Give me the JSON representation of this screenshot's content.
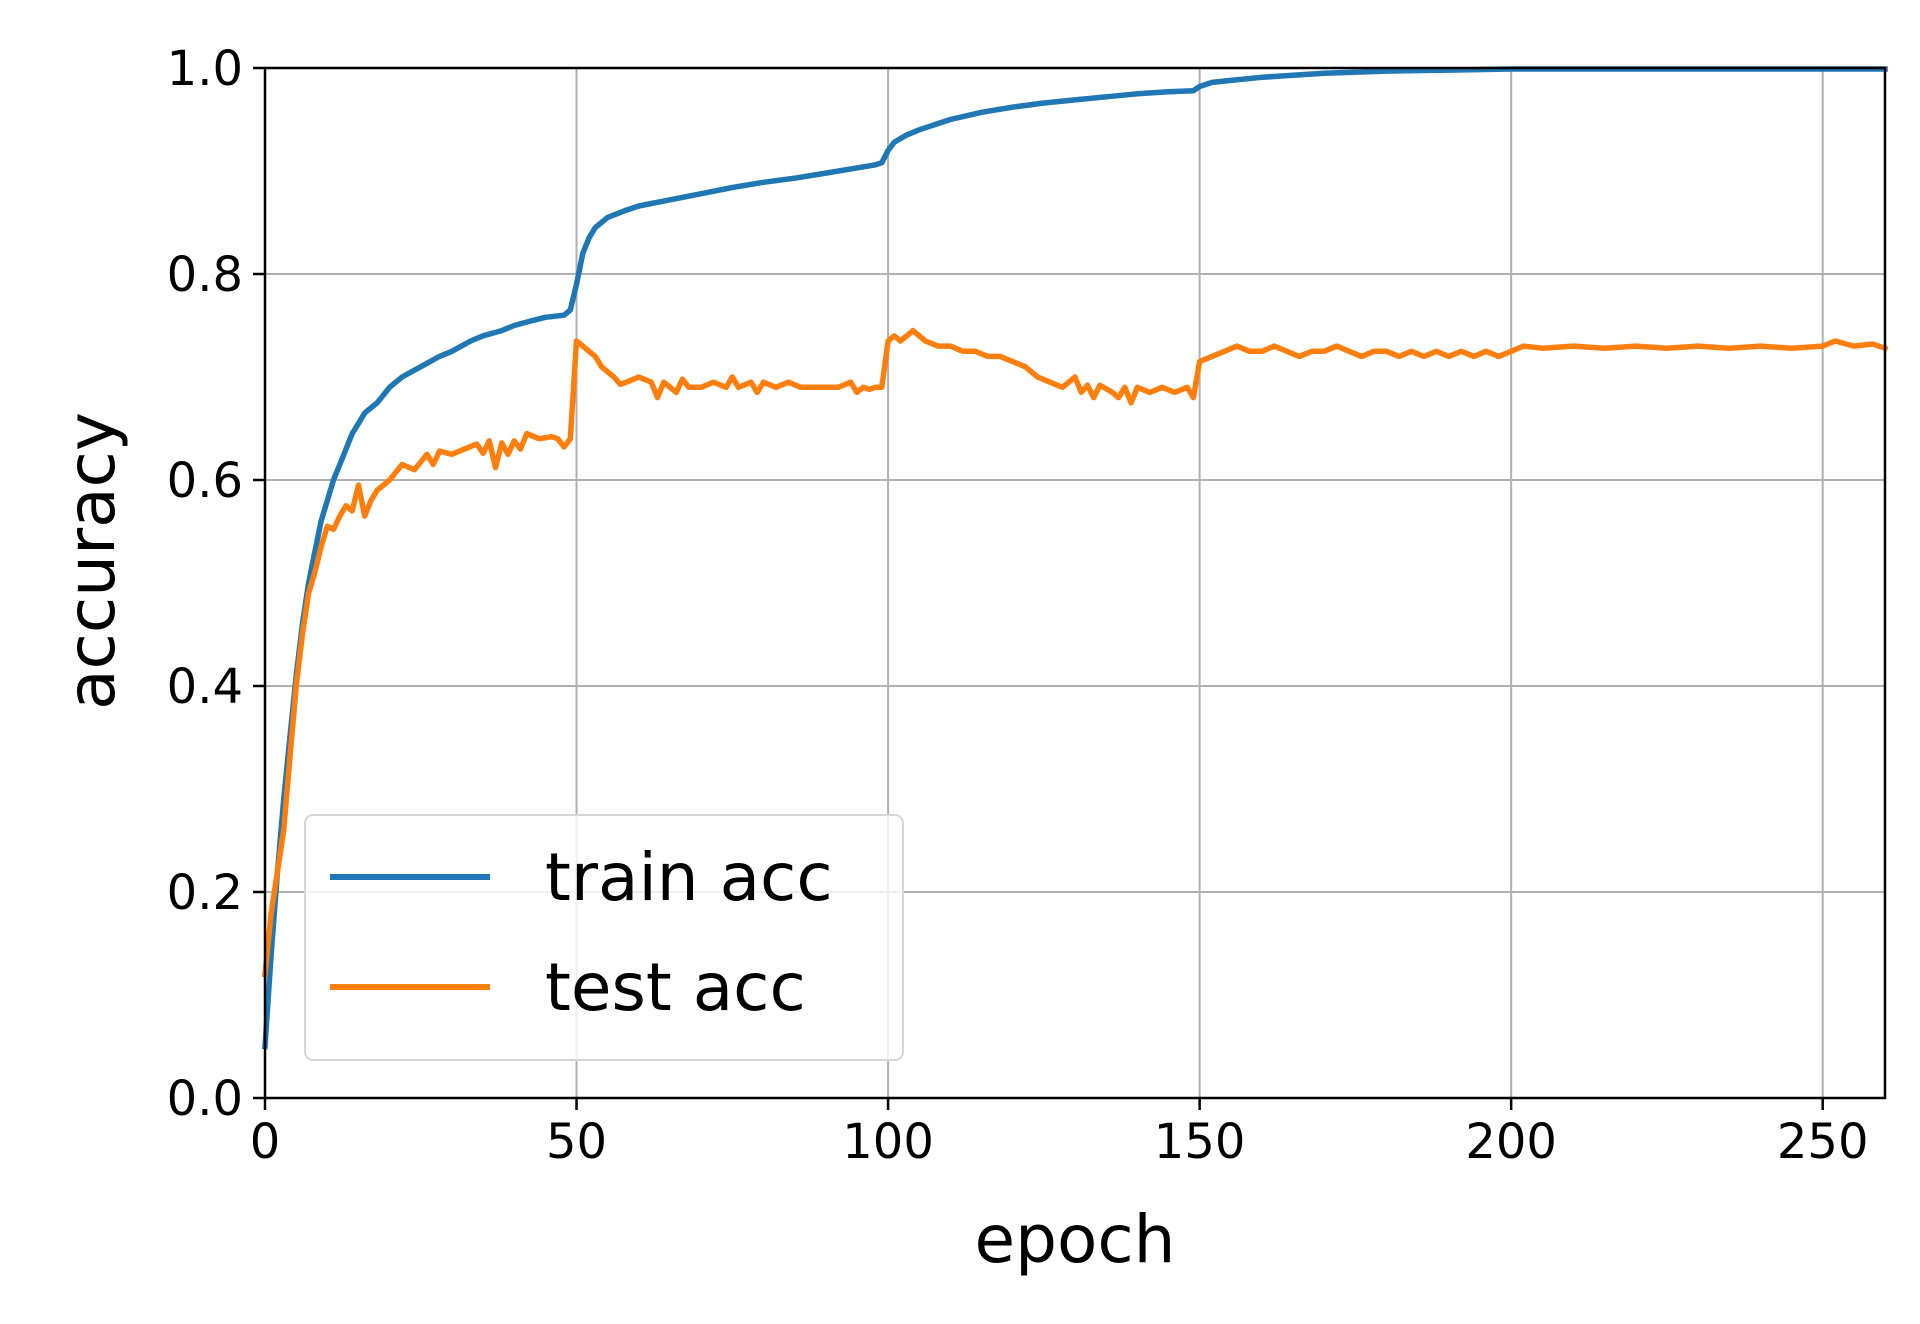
{
  "chart_data": {
    "type": "line",
    "title": "",
    "xlabel": "epoch",
    "ylabel": "accuracy",
    "xlim": [
      0,
      260
    ],
    "ylim": [
      0,
      1.0
    ],
    "xticks": [
      0,
      50,
      100,
      150,
      200,
      250
    ],
    "xtick_labels": [
      "0",
      "50",
      "100",
      "150",
      "200",
      "250"
    ],
    "yticks": [
      0,
      0.2,
      0.4,
      0.6,
      0.8,
      1.0
    ],
    "ytick_labels": [
      "0.0",
      "0.2",
      "0.4",
      "0.6",
      "0.8",
      "1.0"
    ],
    "grid": true,
    "legend_position": "lower-left",
    "series": [
      {
        "name": "train acc",
        "color": "#1f77b4",
        "points": [
          [
            0,
            0.05
          ],
          [
            1,
            0.14
          ],
          [
            2,
            0.22
          ],
          [
            3,
            0.29
          ],
          [
            4,
            0.35
          ],
          [
            5,
            0.41
          ],
          [
            6,
            0.46
          ],
          [
            7,
            0.5
          ],
          [
            8,
            0.53
          ],
          [
            9,
            0.56
          ],
          [
            10,
            0.58
          ],
          [
            11,
            0.6
          ],
          [
            12,
            0.615
          ],
          [
            13,
            0.63
          ],
          [
            14,
            0.645
          ],
          [
            15,
            0.655
          ],
          [
            16,
            0.665
          ],
          [
            18,
            0.675
          ],
          [
            20,
            0.69
          ],
          [
            22,
            0.7
          ],
          [
            25,
            0.71
          ],
          [
            28,
            0.72
          ],
          [
            30,
            0.725
          ],
          [
            33,
            0.735
          ],
          [
            35,
            0.74
          ],
          [
            38,
            0.745
          ],
          [
            40,
            0.75
          ],
          [
            43,
            0.755
          ],
          [
            45,
            0.758
          ],
          [
            48,
            0.76
          ],
          [
            49,
            0.765
          ],
          [
            50,
            0.79
          ],
          [
            51,
            0.82
          ],
          [
            52,
            0.835
          ],
          [
            53,
            0.845
          ],
          [
            55,
            0.855
          ],
          [
            58,
            0.862
          ],
          [
            60,
            0.866
          ],
          [
            65,
            0.872
          ],
          [
            70,
            0.878
          ],
          [
            75,
            0.884
          ],
          [
            80,
            0.889
          ],
          [
            85,
            0.893
          ],
          [
            90,
            0.898
          ],
          [
            95,
            0.903
          ],
          [
            98,
            0.906
          ],
          [
            99,
            0.908
          ],
          [
            100,
            0.92
          ],
          [
            101,
            0.928
          ],
          [
            103,
            0.935
          ],
          [
            105,
            0.94
          ],
          [
            108,
            0.946
          ],
          [
            110,
            0.95
          ],
          [
            115,
            0.957
          ],
          [
            120,
            0.962
          ],
          [
            125,
            0.966
          ],
          [
            130,
            0.969
          ],
          [
            135,
            0.972
          ],
          [
            140,
            0.975
          ],
          [
            145,
            0.977
          ],
          [
            149,
            0.978
          ],
          [
            150,
            0.982
          ],
          [
            152,
            0.986
          ],
          [
            155,
            0.988
          ],
          [
            160,
            0.991
          ],
          [
            165,
            0.993
          ],
          [
            170,
            0.995
          ],
          [
            180,
            0.997
          ],
          [
            190,
            0.998
          ],
          [
            200,
            0.999
          ],
          [
            220,
            0.999
          ],
          [
            240,
            0.999
          ],
          [
            260,
            0.999
          ]
        ]
      },
      {
        "name": "test acc",
        "color": "#ff7f0e",
        "points": [
          [
            0,
            0.12
          ],
          [
            1,
            0.18
          ],
          [
            2,
            0.22
          ],
          [
            3,
            0.26
          ],
          [
            4,
            0.33
          ],
          [
            5,
            0.4
          ],
          [
            6,
            0.45
          ],
          [
            7,
            0.49
          ],
          [
            8,
            0.51
          ],
          [
            9,
            0.535
          ],
          [
            10,
            0.555
          ],
          [
            11,
            0.552
          ],
          [
            12,
            0.565
          ],
          [
            13,
            0.575
          ],
          [
            14,
            0.57
          ],
          [
            15,
            0.595
          ],
          [
            16,
            0.565
          ],
          [
            17,
            0.58
          ],
          [
            18,
            0.59
          ],
          [
            20,
            0.6
          ],
          [
            22,
            0.615
          ],
          [
            24,
            0.61
          ],
          [
            26,
            0.625
          ],
          [
            27,
            0.615
          ],
          [
            28,
            0.628
          ],
          [
            30,
            0.625
          ],
          [
            32,
            0.63
          ],
          [
            34,
            0.635
          ],
          [
            35,
            0.626
          ],
          [
            36,
            0.638
          ],
          [
            37,
            0.612
          ],
          [
            38,
            0.636
          ],
          [
            39,
            0.625
          ],
          [
            40,
            0.638
          ],
          [
            41,
            0.63
          ],
          [
            42,
            0.645
          ],
          [
            44,
            0.64
          ],
          [
            46,
            0.642
          ],
          [
            47,
            0.64
          ],
          [
            48,
            0.632
          ],
          [
            49,
            0.64
          ],
          [
            50,
            0.735
          ],
          [
            51,
            0.73
          ],
          [
            52,
            0.725
          ],
          [
            53,
            0.72
          ],
          [
            54,
            0.71
          ],
          [
            55,
            0.705
          ],
          [
            56,
            0.7
          ],
          [
            57,
            0.693
          ],
          [
            58,
            0.695
          ],
          [
            60,
            0.7
          ],
          [
            62,
            0.695
          ],
          [
            63,
            0.68
          ],
          [
            64,
            0.695
          ],
          [
            65,
            0.69
          ],
          [
            66,
            0.685
          ],
          [
            67,
            0.698
          ],
          [
            68,
            0.69
          ],
          [
            70,
            0.69
          ],
          [
            72,
            0.695
          ],
          [
            74,
            0.69
          ],
          [
            75,
            0.7
          ],
          [
            76,
            0.69
          ],
          [
            78,
            0.695
          ],
          [
            79,
            0.685
          ],
          [
            80,
            0.695
          ],
          [
            82,
            0.69
          ],
          [
            84,
            0.695
          ],
          [
            86,
            0.69
          ],
          [
            88,
            0.69
          ],
          [
            90,
            0.69
          ],
          [
            92,
            0.69
          ],
          [
            94,
            0.695
          ],
          [
            95,
            0.685
          ],
          [
            96,
            0.69
          ],
          [
            97,
            0.688
          ],
          [
            98,
            0.69
          ],
          [
            99,
            0.69
          ],
          [
            100,
            0.735
          ],
          [
            101,
            0.74
          ],
          [
            102,
            0.735
          ],
          [
            104,
            0.745
          ],
          [
            106,
            0.735
          ],
          [
            108,
            0.73
          ],
          [
            110,
            0.73
          ],
          [
            112,
            0.725
          ],
          [
            114,
            0.725
          ],
          [
            116,
            0.72
          ],
          [
            118,
            0.72
          ],
          [
            120,
            0.715
          ],
          [
            122,
            0.71
          ],
          [
            124,
            0.7
          ],
          [
            126,
            0.695
          ],
          [
            128,
            0.69
          ],
          [
            130,
            0.7
          ],
          [
            131,
            0.685
          ],
          [
            132,
            0.692
          ],
          [
            133,
            0.68
          ],
          [
            134,
            0.692
          ],
          [
            136,
            0.685
          ],
          [
            137,
            0.68
          ],
          [
            138,
            0.69
          ],
          [
            139,
            0.675
          ],
          [
            140,
            0.69
          ],
          [
            142,
            0.685
          ],
          [
            144,
            0.69
          ],
          [
            146,
            0.685
          ],
          [
            148,
            0.69
          ],
          [
            149,
            0.68
          ],
          [
            150,
            0.715
          ],
          [
            152,
            0.72
          ],
          [
            154,
            0.725
          ],
          [
            156,
            0.73
          ],
          [
            158,
            0.725
          ],
          [
            160,
            0.725
          ],
          [
            162,
            0.73
          ],
          [
            164,
            0.725
          ],
          [
            166,
            0.72
          ],
          [
            168,
            0.725
          ],
          [
            170,
            0.725
          ],
          [
            172,
            0.73
          ],
          [
            174,
            0.725
          ],
          [
            176,
            0.72
          ],
          [
            178,
            0.725
          ],
          [
            180,
            0.725
          ],
          [
            182,
            0.72
          ],
          [
            184,
            0.725
          ],
          [
            186,
            0.72
          ],
          [
            188,
            0.725
          ],
          [
            190,
            0.72
          ],
          [
            192,
            0.725
          ],
          [
            194,
            0.72
          ],
          [
            196,
            0.725
          ],
          [
            198,
            0.72
          ],
          [
            200,
            0.725
          ],
          [
            202,
            0.73
          ],
          [
            205,
            0.728
          ],
          [
            210,
            0.73
          ],
          [
            215,
            0.728
          ],
          [
            220,
            0.73
          ],
          [
            225,
            0.728
          ],
          [
            230,
            0.73
          ],
          [
            235,
            0.728
          ],
          [
            240,
            0.73
          ],
          [
            245,
            0.728
          ],
          [
            250,
            0.73
          ],
          [
            252,
            0.735
          ],
          [
            255,
            0.73
          ],
          [
            258,
            0.732
          ],
          [
            260,
            0.728
          ]
        ]
      }
    ]
  }
}
